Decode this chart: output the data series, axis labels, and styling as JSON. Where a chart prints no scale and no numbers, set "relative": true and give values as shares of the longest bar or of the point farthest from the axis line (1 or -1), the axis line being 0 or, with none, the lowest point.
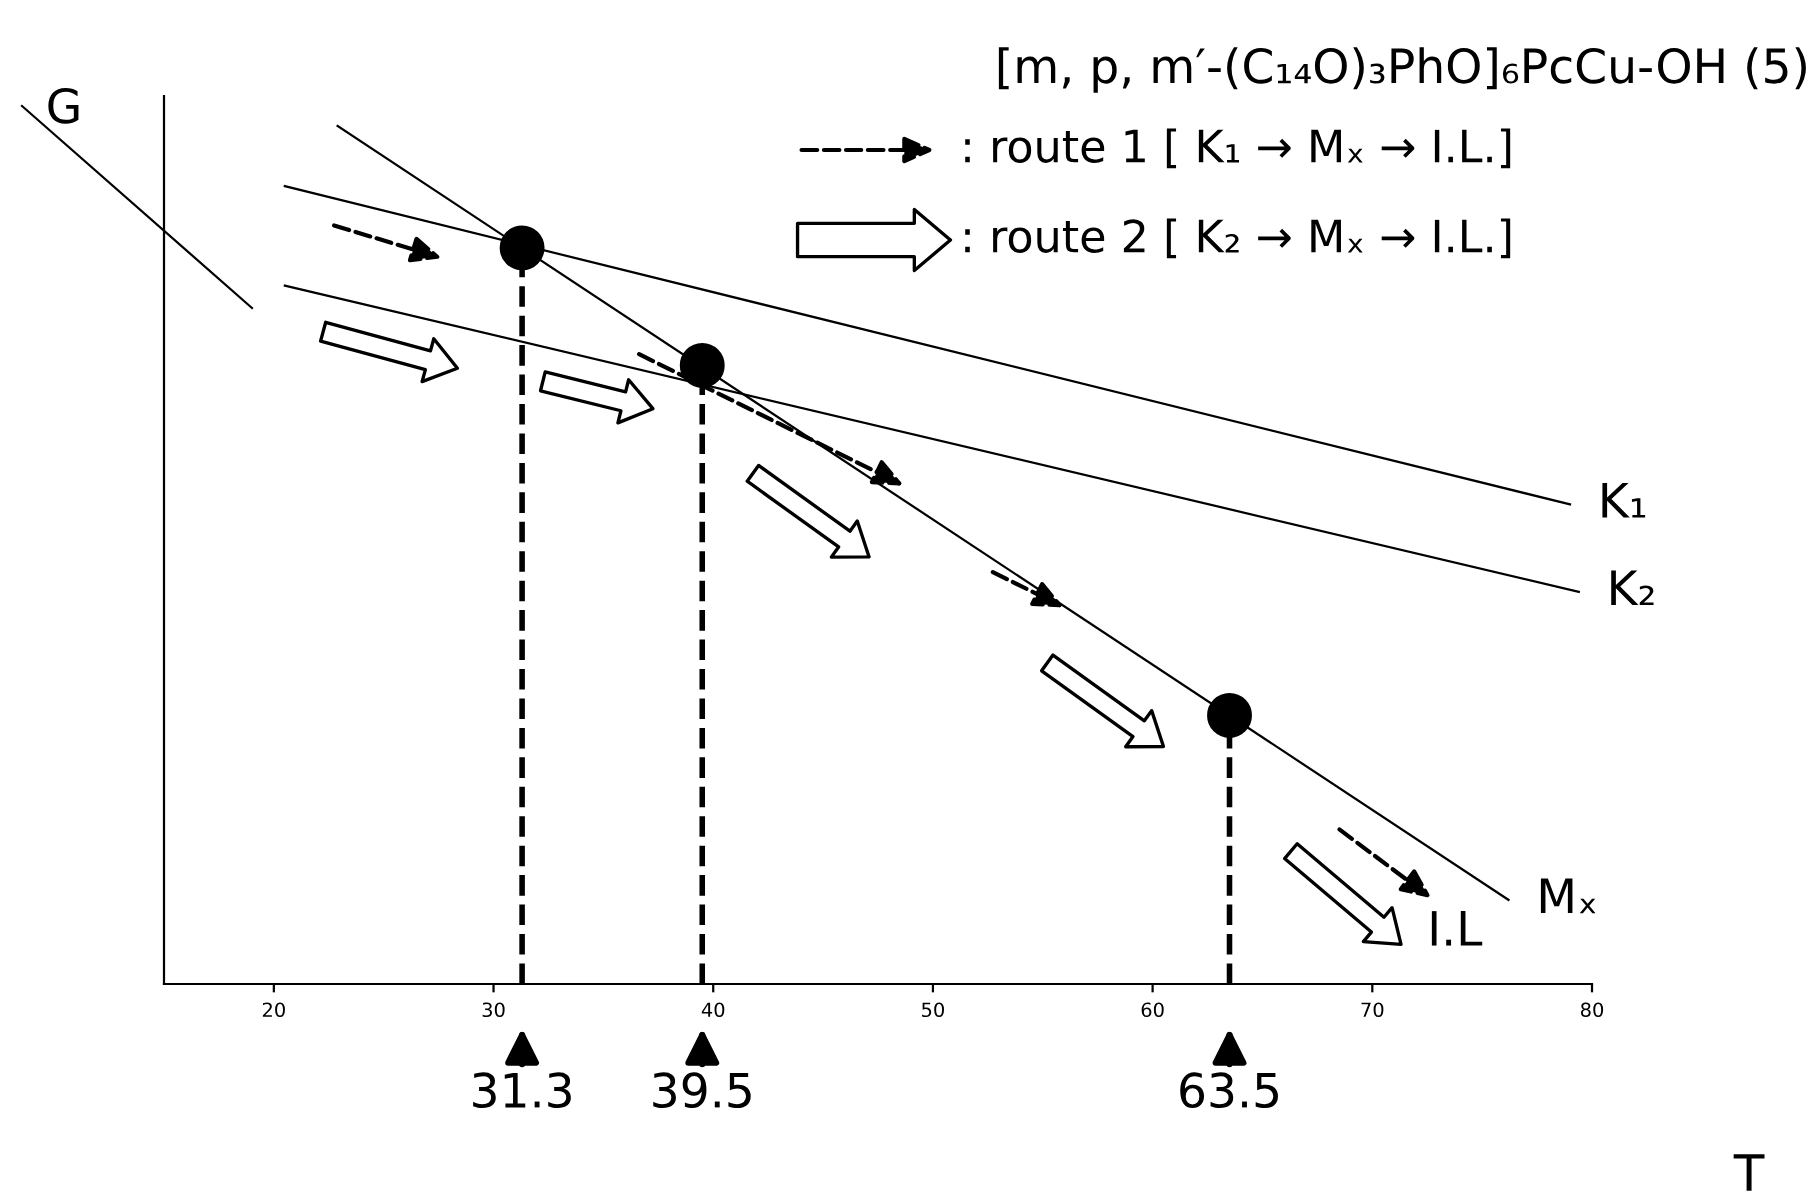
{
  "chart_data": {
    "type": "line",
    "title": "[m, p, m′-(C₁₄O)₃PhO]₆PcCu-OH (5)",
    "xlabel": "T",
    "ylabel": "G",
    "relative": true,
    "tick_labels": "x",
    "xlim": [
      15,
      80
    ],
    "xticks": [
      20,
      30,
      40,
      50,
      60,
      70,
      80
    ],
    "series": [
      {
        "name": "K₁",
        "color": "#000000",
        "x": [
          20.5,
          79.0
        ],
        "values": [
          0.93,
          0.559
        ]
      },
      {
        "name": "K₂",
        "color": "#000000",
        "x": [
          20.5,
          79.4
        ],
        "values": [
          0.814,
          0.457
        ]
      },
      {
        "name": "Mₓ",
        "color": "#000000",
        "x": [
          22.9,
          76.2
        ],
        "values": [
          1.0,
          0.098
        ]
      },
      {
        "type": "scatter",
        "marker": "circle",
        "color": "#000000",
        "x": [
          31.3,
          39.5,
          63.5
        ],
        "values": [
          0.858,
          0.721,
          0.313
        ]
      }
    ],
    "ref_lines": [
      {
        "axis": "x",
        "value": 31.3,
        "label": "31.3",
        "line_style": "dashed",
        "color": "#000000"
      },
      {
        "axis": "x",
        "value": 39.5,
        "label": "39.5",
        "line_style": "dashed",
        "color": "#000000"
      },
      {
        "axis": "x",
        "value": 63.5,
        "label": "63.5",
        "line_style": "dashed",
        "color": "#000000"
      }
    ],
    "annotations": [
      ": route 1 [ K₁ → Mₓ → I.L.]",
      ": route 2 [ K₂ → Mₓ → I.L.]",
      "I.L"
    ]
  }
}
